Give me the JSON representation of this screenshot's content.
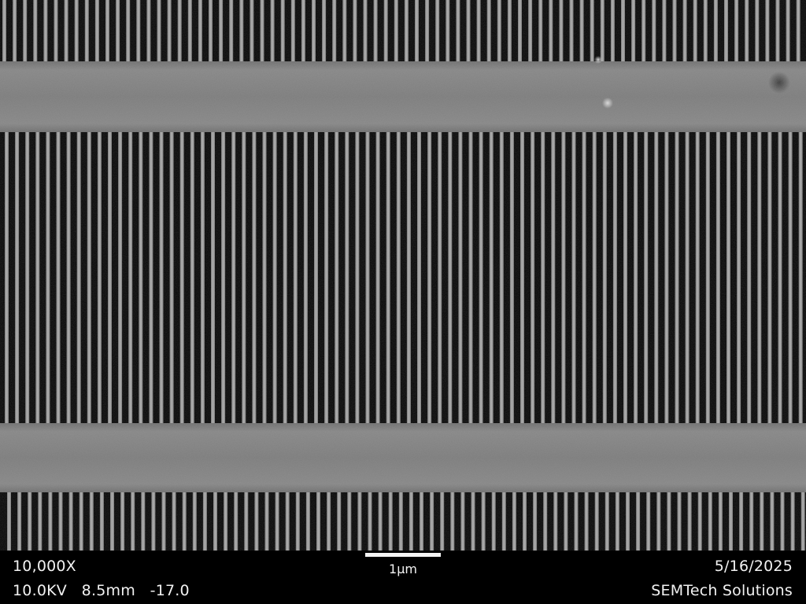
{
  "info_bar": {
    "magnification": "10,000X",
    "acquisition_params": "10.0KV   8.5mm   -17.0",
    "date": "5/16/2025",
    "company": "SEMTech Solutions",
    "scale_label": "1µm"
  },
  "image": {
    "subject": "SEM micrograph of periodic line-and-space grating with two horizontal support bars",
    "colors": {
      "background_void": "#050505",
      "line_gray": "#9a9a9a",
      "bar_gray": "#7e7e7e"
    }
  }
}
